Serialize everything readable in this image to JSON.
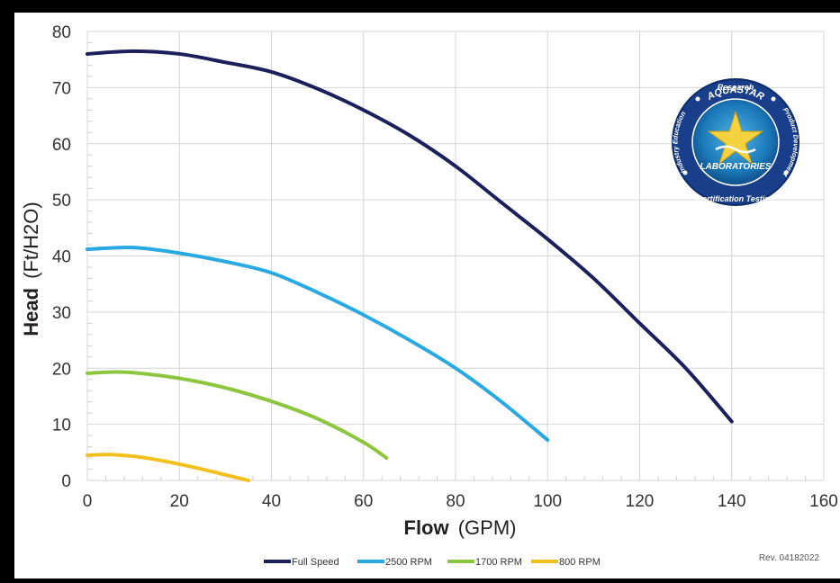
{
  "chart_data": {
    "type": "line",
    "title": "",
    "xlabel_bold": "Flow",
    "xlabel_unit": "(GPM)",
    "ylabel_bold": "Head",
    "ylabel_unit": "(Ft/H2O)",
    "xlim": [
      0,
      160
    ],
    "ylim": [
      0,
      80
    ],
    "xticks": [
      0,
      20,
      40,
      60,
      80,
      100,
      120,
      140,
      160
    ],
    "yticks": [
      0,
      10,
      20,
      30,
      40,
      50,
      60,
      70,
      80
    ],
    "grid": true,
    "legend_position": "bottom-center",
    "series": [
      {
        "name": "Full Speed",
        "color": "#1b1f5a",
        "x": [
          0,
          10,
          20,
          30,
          40,
          50,
          60,
          70,
          80,
          90,
          100,
          110,
          120,
          130,
          140
        ],
        "y": [
          76,
          76.5,
          76,
          74.5,
          72.8,
          69.8,
          66,
          61.5,
          56,
          49.5,
          43,
          36,
          28,
          20,
          10.5
        ]
      },
      {
        "name": "2500 RPM",
        "color": "#29a9e1",
        "x": [
          0,
          10,
          20,
          30,
          40,
          50,
          60,
          70,
          80,
          90,
          100
        ],
        "y": [
          41.2,
          41.5,
          40.5,
          39,
          37,
          33.5,
          29.5,
          25,
          20,
          14,
          7.2
        ]
      },
      {
        "name": "1700 RPM",
        "color": "#8cc63f",
        "x": [
          0,
          5,
          10,
          20,
          30,
          40,
          50,
          60,
          65
        ],
        "y": [
          19.1,
          19.3,
          19.2,
          18.2,
          16.5,
          14.1,
          11,
          6.8,
          4
        ]
      },
      {
        "name": "800 RPM",
        "color": "#f2c01e",
        "x": [
          0,
          5,
          10,
          15,
          20,
          25,
          30,
          35
        ],
        "y": [
          4.5,
          4.6,
          4.3,
          3.7,
          2.9,
          2,
          1,
          0
        ]
      }
    ]
  },
  "revision": "Rev. 04182022",
  "logo": {
    "top_text": "Research",
    "name_top": "AQUASTAR",
    "name_bottom": "LABORATORIES",
    "left_text": "Industry Education",
    "right_text": "Product Development",
    "bottom_text": "Certification Testing"
  }
}
